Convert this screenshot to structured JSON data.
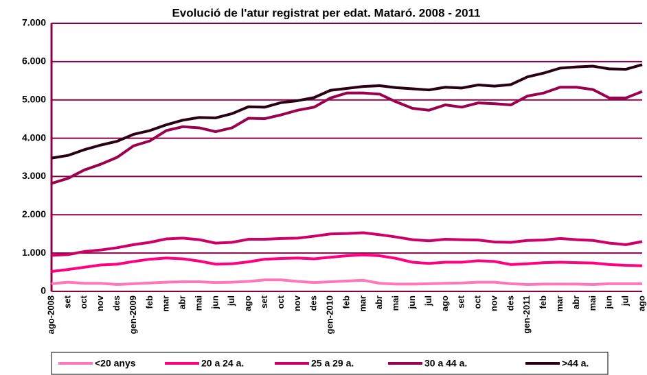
{
  "chart_data": {
    "type": "line",
    "title": "Evolució de l'atur registrat per edat. Mataró. 2008 - 2011",
    "categories": [
      "ago-2008",
      "set",
      "oct",
      "nov",
      "des",
      "gen-2009",
      "feb",
      "mar",
      "abr",
      "mai",
      "jun",
      "jul",
      "ago",
      "set",
      "oct",
      "nov",
      "des",
      "gen-2010",
      "feb",
      "mar",
      "abr",
      "mai",
      "jun",
      "jul",
      "ago",
      "set",
      "oct",
      "nov",
      "des",
      "gen-2011",
      "feb",
      "mar",
      "abr",
      "mai",
      "jun",
      "jul",
      "ago"
    ],
    "series": [
      {
        "name": "<20 anys",
        "color": "#ff77bb",
        "values": [
          200,
          240,
          210,
          210,
          180,
          200,
          220,
          240,
          250,
          250,
          230,
          240,
          260,
          300,
          300,
          260,
          230,
          250,
          270,
          290,
          210,
          190,
          190,
          200,
          210,
          220,
          240,
          240,
          200,
          180,
          190,
          190,
          190,
          180,
          200,
          200,
          200
        ]
      },
      {
        "name": "20 a 24 a.",
        "color": "#ff0080",
        "values": [
          520,
          570,
          630,
          690,
          710,
          780,
          840,
          870,
          850,
          790,
          710,
          720,
          770,
          840,
          860,
          870,
          850,
          890,
          930,
          950,
          930,
          860,
          760,
          730,
          760,
          760,
          800,
          780,
          700,
          720,
          750,
          760,
          750,
          740,
          700,
          680,
          670
        ]
      },
      {
        "name": "25 a 29 a.",
        "color": "#cc0066",
        "values": [
          940,
          960,
          1040,
          1080,
          1140,
          1220,
          1280,
          1370,
          1390,
          1350,
          1260,
          1280,
          1360,
          1360,
          1380,
          1390,
          1440,
          1500,
          1510,
          1530,
          1480,
          1420,
          1350,
          1320,
          1360,
          1350,
          1340,
          1290,
          1280,
          1330,
          1340,
          1380,
          1350,
          1330,
          1260,
          1220,
          1300
        ]
      },
      {
        "name": "30 a 44 a.",
        "color": "#99004d",
        "values": [
          2820,
          2950,
          3170,
          3320,
          3500,
          3800,
          3930,
          4200,
          4300,
          4270,
          4170,
          4270,
          4520,
          4510,
          4610,
          4730,
          4810,
          5050,
          5180,
          5180,
          5150,
          4950,
          4780,
          4730,
          4870,
          4810,
          4920,
          4900,
          4870,
          5100,
          5180,
          5330,
          5330,
          5270,
          5050,
          5050,
          5220
        ]
      },
      {
        "name": ">44 a.",
        "color": "#2a0014",
        "values": [
          3480,
          3550,
          3700,
          3820,
          3920,
          4100,
          4200,
          4350,
          4470,
          4540,
          4530,
          4640,
          4820,
          4810,
          4930,
          4980,
          5060,
          5250,
          5300,
          5350,
          5370,
          5320,
          5290,
          5260,
          5330,
          5310,
          5390,
          5360,
          5400,
          5600,
          5700,
          5830,
          5860,
          5880,
          5810,
          5800,
          5920
        ]
      }
    ],
    "ylim": [
      0,
      7000
    ],
    "yticks": [
      0,
      {
        "value": 1000,
        "label": "1.000"
      },
      {
        "value": 2000,
        "label": "2.000"
      },
      {
        "value": 3000,
        "label": "3.000"
      },
      {
        "value": 4000,
        "label": "4.000"
      },
      {
        "value": 5000,
        "label": "5.000"
      },
      {
        "value": 6000,
        "label": "6.000"
      },
      {
        "value": 7000,
        "label": "7.000"
      }
    ],
    "grid": true,
    "grid_color": "#8b0045",
    "legend": "bottom"
  }
}
